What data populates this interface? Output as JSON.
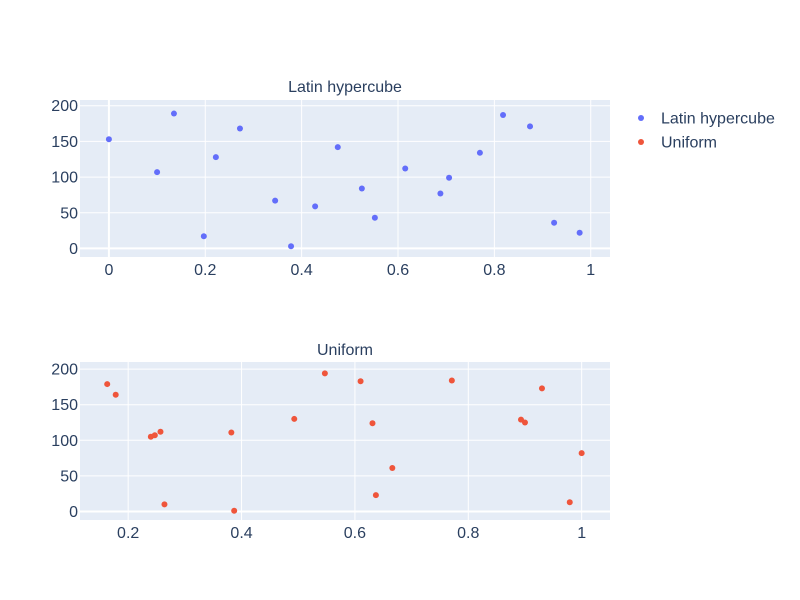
{
  "chart_data": [
    {
      "type": "scatter",
      "title": "Latin hypercube",
      "xlim": [
        -0.06,
        1.04
      ],
      "ylim": [
        -12,
        208
      ],
      "xticks": [
        0,
        0.2,
        0.4,
        0.6,
        0.8,
        1
      ],
      "xtick_labels": [
        "0",
        "0.2",
        "0.4",
        "0.6",
        "0.8",
        "1"
      ],
      "yticks": [
        0,
        50,
        100,
        150,
        200
      ],
      "ytick_labels": [
        "0",
        "50",
        "100",
        "150",
        "200"
      ],
      "grid": true,
      "color": "#636efa",
      "series": [
        {
          "name": "Latin hypercube",
          "x": [
            0.0,
            0.1,
            0.135,
            0.197,
            0.222,
            0.272,
            0.345,
            0.378,
            0.428,
            0.475,
            0.525,
            0.552,
            0.615,
            0.688,
            0.706,
            0.77,
            0.818,
            0.874,
            0.924,
            0.977
          ],
          "y": [
            153,
            107,
            189,
            17,
            128,
            168,
            67,
            3,
            59,
            142,
            84,
            43,
            112,
            77,
            99,
            134,
            187,
            171,
            36,
            22
          ]
        }
      ]
    },
    {
      "type": "scatter",
      "title": "Uniform",
      "xlim": [
        0.115,
        1.05
      ],
      "ylim": [
        -12,
        210
      ],
      "xticks": [
        0.2,
        0.4,
        0.6,
        0.8,
        1
      ],
      "xtick_labels": [
        "0.2",
        "0.4",
        "0.6",
        "0.8",
        "1"
      ],
      "yticks": [
        0,
        50,
        100,
        150,
        200
      ],
      "ytick_labels": [
        "0",
        "50",
        "100",
        "150",
        "200"
      ],
      "grid": true,
      "color": "#ef553b",
      "series": [
        {
          "name": "Uniform",
          "x": [
            0.163,
            0.178,
            0.24,
            0.247,
            0.257,
            0.264,
            0.382,
            0.387,
            0.493,
            0.547,
            0.61,
            0.631,
            0.637,
            0.666,
            0.771,
            0.893,
            0.9,
            0.93,
            0.979,
            1.0
          ],
          "y": [
            179,
            164,
            105,
            107,
            112,
            10,
            111,
            1,
            130,
            194,
            183,
            124,
            23,
            61,
            184,
            129,
            125,
            173,
            13,
            82
          ]
        }
      ]
    }
  ],
  "legend": {
    "placement": "top-right",
    "items": [
      {
        "name": "Latin hypercube",
        "color": "#636efa"
      },
      {
        "name": "Uniform",
        "color": "#ef553b"
      }
    ]
  }
}
